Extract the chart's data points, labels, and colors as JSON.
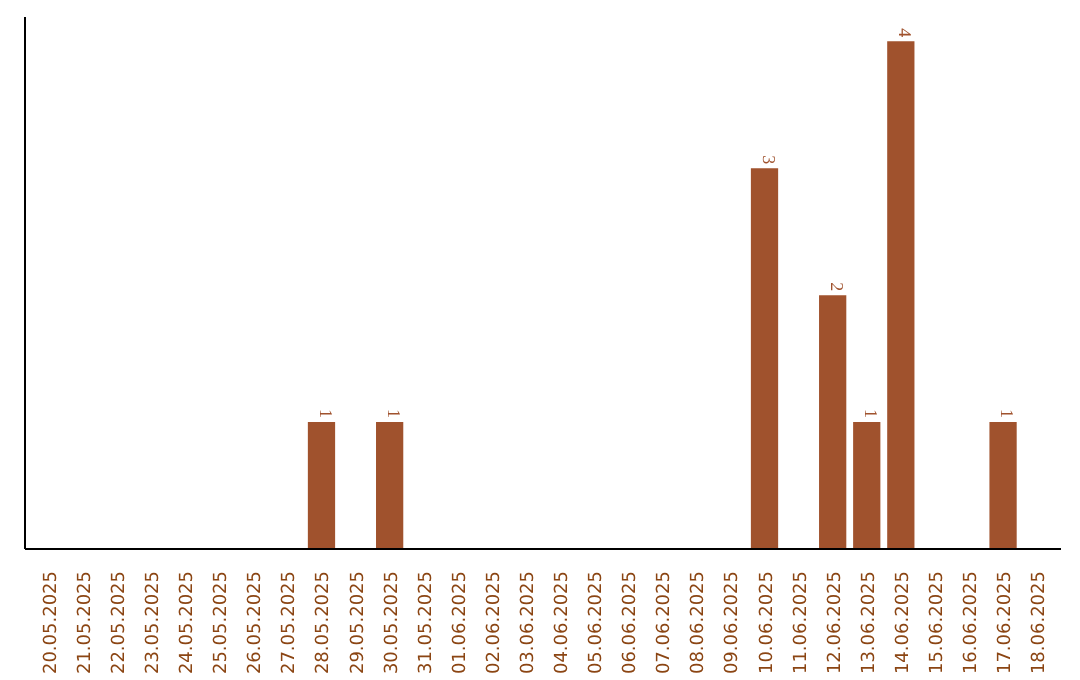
{
  "chart_data": {
    "type": "bar",
    "categories": [
      "20.05.2025",
      "21.05.2025",
      "22.05.2025",
      "23.05.2025",
      "24.05.2025",
      "25.05.2025",
      "26.05.2025",
      "27.05.2025",
      "28.05.2025",
      "29.05.2025",
      "30.05.2025",
      "31.05.2025",
      "01.06.2025",
      "02.06.2025",
      "03.06.2025",
      "04.06.2025",
      "05.06.2025",
      "06.06.2025",
      "07.06.2025",
      "08.06.2025",
      "09.06.2025",
      "10.06.2025",
      "11.06.2025",
      "12.06.2025",
      "13.06.2025",
      "14.06.2025",
      "15.06.2025",
      "16.06.2025",
      "17.06.2025",
      "18.06.2025"
    ],
    "values": [
      0,
      0,
      0,
      0,
      0,
      0,
      0,
      0,
      1,
      0,
      1,
      0,
      0,
      0,
      0,
      0,
      0,
      0,
      0,
      0,
      0,
      3,
      0,
      2,
      1,
      4,
      0,
      0,
      1,
      0
    ],
    "value_labels": [
      null,
      null,
      null,
      null,
      null,
      null,
      null,
      null,
      "1",
      null,
      "1",
      null,
      null,
      null,
      null,
      null,
      null,
      null,
      null,
      null,
      null,
      "3",
      null,
      "2",
      "1",
      "4",
      null,
      null,
      "1",
      null
    ],
    "color": "#a0522d",
    "grid": false
  }
}
